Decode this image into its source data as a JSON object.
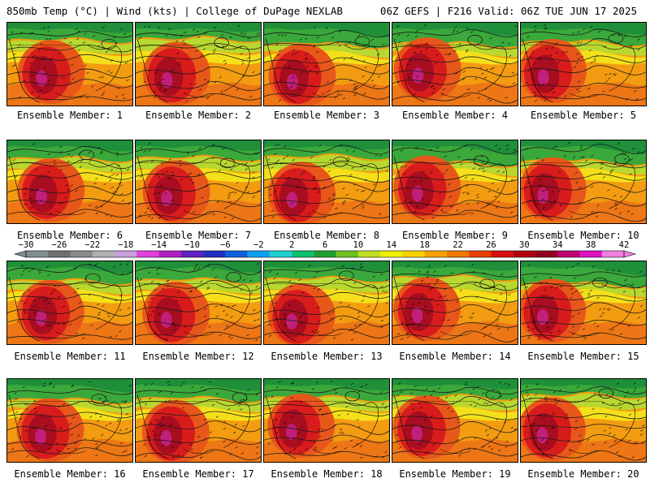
{
  "header": {
    "left": "850mb Temp (°C) | Wind (kts) | College of DuPage NEXLAB",
    "right": "06Z GEFS | F216 Valid: 06Z TUE JUN 17 2025"
  },
  "panels": [
    {
      "label": "Ensemble Member: 1"
    },
    {
      "label": "Ensemble Member: 2"
    },
    {
      "label": "Ensemble Member: 3"
    },
    {
      "label": "Ensemble Member: 4"
    },
    {
      "label": "Ensemble Member: 5"
    },
    {
      "label": "Ensemble Member: 6"
    },
    {
      "label": "Ensemble Member: 7"
    },
    {
      "label": "Ensemble Member: 8"
    },
    {
      "label": "Ensemble Member: 9"
    },
    {
      "label": "Ensemble Member: 10"
    },
    {
      "label": "Ensemble Member: 11"
    },
    {
      "label": "Ensemble Member: 12"
    },
    {
      "label": "Ensemble Member: 13"
    },
    {
      "label": "Ensemble Member: 14"
    },
    {
      "label": "Ensemble Member: 15"
    },
    {
      "label": "Ensemble Member: 16"
    },
    {
      "label": "Ensemble Member: 17"
    },
    {
      "label": "Ensemble Member: 18"
    },
    {
      "label": "Ensemble Member: 19"
    },
    {
      "label": "Ensemble Member: 20"
    }
  ],
  "colorbar": {
    "tick_labels": [
      "-30",
      "-26",
      "-22",
      "-18",
      "-14",
      "-10",
      "-6",
      "-2",
      "2",
      "6",
      "10",
      "14",
      "18",
      "22",
      "26",
      "30",
      "34",
      "38",
      "42"
    ],
    "colors": [
      "#7f8f8f",
      "#6f6f6f",
      "#8a8a8a",
      "#b0b0b0",
      "#c8a0e0",
      "#e040e0",
      "#b020c0",
      "#6020c0",
      "#2030c0",
      "#1060e0",
      "#10a0f0",
      "#20d0d0",
      "#10c070",
      "#20a030",
      "#70c020",
      "#c0e020",
      "#f0f000",
      "#f8d000",
      "#f8a000",
      "#f07800",
      "#e84000",
      "#d81010",
      "#b00010",
      "#900020",
      "#c00070",
      "#e010c0",
      "#f080e0"
    ],
    "tick_color": "#000000"
  },
  "map_colors": {
    "cold_green": "#1f8f3a",
    "green": "#3aa83a",
    "yellow_green": "#b8d830",
    "yellow": "#f4e01a",
    "orange": "#f39c12",
    "red_orange": "#e8571a",
    "red": "#d81c1c",
    "dark_red": "#a80d20",
    "magenta": "#c0207a",
    "contour": "#1a1a1a"
  }
}
